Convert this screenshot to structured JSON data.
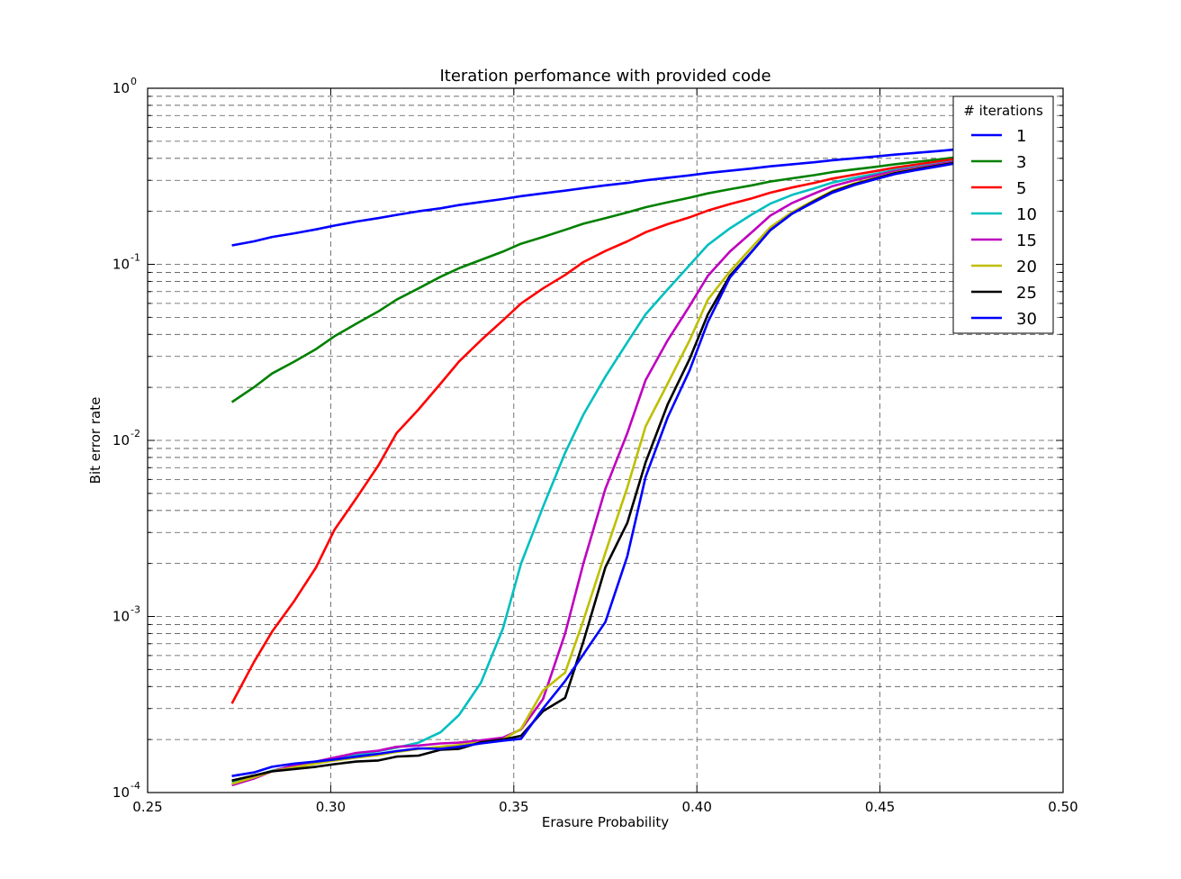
{
  "chart_data": {
    "type": "line",
    "title": "Iteration perfomance with provided code",
    "xlabel": "Erasure Probability",
    "ylabel": "Bit error rate",
    "xlim": [
      0.25,
      0.5
    ],
    "ylim": [
      0.0001,
      1
    ],
    "yscale": "log",
    "grid": true,
    "legend_position": "top-right",
    "legend_title": "# iterations",
    "x_ticks": [
      "0.25",
      "0.30",
      "0.35",
      "0.40",
      "0.45",
      "0.50"
    ],
    "y_ticks": [
      {
        "base": "10",
        "exp": "0"
      },
      {
        "base": "10",
        "exp": "-1"
      },
      {
        "base": "10",
        "exp": "-2"
      },
      {
        "base": "10",
        "exp": "-3"
      },
      {
        "base": "10",
        "exp": "-4"
      }
    ],
    "x": [
      0.273,
      0.279,
      0.284,
      0.29,
      0.296,
      0.301,
      0.307,
      0.313,
      0.318,
      0.324,
      0.33,
      0.335,
      0.341,
      0.347,
      0.352,
      0.358,
      0.364,
      0.369,
      0.375,
      0.381,
      0.386,
      0.392,
      0.398,
      0.403,
      0.409,
      0.415,
      0.42,
      0.426,
      0.432,
      0.437,
      0.443,
      0.449,
      0.454,
      0.46,
      0.466,
      0.471,
      0.477,
      0.483,
      0.488,
      0.494
    ],
    "series": [
      {
        "name": "1",
        "color": "#0000ff",
        "values": [
          0.128,
          0.135,
          0.143,
          0.15,
          0.158,
          0.166,
          0.175,
          0.183,
          0.191,
          0.2,
          0.208,
          0.217,
          0.226,
          0.235,
          0.244,
          0.253,
          0.262,
          0.271,
          0.281,
          0.29,
          0.3,
          0.31,
          0.32,
          0.33,
          0.34,
          0.35,
          0.36,
          0.37,
          0.38,
          0.39,
          0.4,
          0.41,
          0.42,
          0.43,
          0.44,
          0.45,
          0.46,
          0.47,
          0.48,
          0.49
        ]
      },
      {
        "name": "3",
        "color": "#008000",
        "values": [
          0.0165,
          0.02,
          0.024,
          0.028,
          0.033,
          0.039,
          0.046,
          0.054,
          0.063,
          0.073,
          0.085,
          0.095,
          0.106,
          0.118,
          0.131,
          0.143,
          0.157,
          0.17,
          0.183,
          0.197,
          0.211,
          0.225,
          0.239,
          0.253,
          0.267,
          0.281,
          0.295,
          0.308,
          0.321,
          0.334,
          0.346,
          0.358,
          0.37,
          0.382,
          0.394,
          0.406,
          0.418,
          0.43,
          0.442,
          0.454
        ]
      },
      {
        "name": "5",
        "color": "#ff0000",
        "values": [
          0.00032,
          0.00055,
          0.00082,
          0.00122,
          0.0019,
          0.0031,
          0.0047,
          0.0072,
          0.011,
          0.015,
          0.021,
          0.028,
          0.037,
          0.048,
          0.06,
          0.073,
          0.087,
          0.103,
          0.119,
          0.135,
          0.152,
          0.169,
          0.185,
          0.202,
          0.22,
          0.237,
          0.255,
          0.273,
          0.29,
          0.307,
          0.323,
          0.339,
          0.354,
          0.369,
          0.384,
          0.398,
          0.412,
          0.426,
          0.44,
          0.454
        ]
      },
      {
        "name": "10",
        "color": "#00bfbf",
        "values": [
          0.000115,
          0.000124,
          0.000133,
          0.000142,
          0.00015,
          0.000157,
          0.000164,
          0.000172,
          0.00018,
          0.000192,
          0.00022,
          0.000275,
          0.00042,
          0.00085,
          0.002,
          0.0042,
          0.0085,
          0.014,
          0.023,
          0.036,
          0.052,
          0.072,
          0.099,
          0.129,
          0.16,
          0.192,
          0.221,
          0.248,
          0.27,
          0.291,
          0.31,
          0.327,
          0.343,
          0.358,
          0.373,
          0.387,
          0.401,
          0.415,
          0.429,
          0.443
        ]
      },
      {
        "name": "15",
        "color": "#bf00bf",
        "values": [
          0.00011,
          0.00012,
          0.000132,
          0.000143,
          0.00015,
          0.000158,
          0.000168,
          0.000173,
          0.000182,
          0.000185,
          0.00019,
          0.000192,
          0.000198,
          0.000205,
          0.000228,
          0.00034,
          0.0008,
          0.002,
          0.0053,
          0.011,
          0.022,
          0.037,
          0.058,
          0.086,
          0.118,
          0.152,
          0.189,
          0.223,
          0.252,
          0.278,
          0.3,
          0.32,
          0.338,
          0.354,
          0.37,
          0.385,
          0.399,
          0.413,
          0.427,
          0.441
        ]
      },
      {
        "name": "20",
        "color": "#bfbf00",
        "values": [
          0.000112,
          0.000122,
          0.000132,
          0.000139,
          0.000146,
          0.000152,
          0.000158,
          0.000163,
          0.00017,
          0.000177,
          0.000182,
          0.000186,
          0.000193,
          0.0002,
          0.00023,
          0.00038,
          0.00048,
          0.00095,
          0.0023,
          0.0054,
          0.012,
          0.021,
          0.037,
          0.063,
          0.091,
          0.125,
          0.162,
          0.198,
          0.231,
          0.261,
          0.288,
          0.311,
          0.331,
          0.349,
          0.365,
          0.38,
          0.395,
          0.409,
          0.423,
          0.437
        ]
      },
      {
        "name": "25",
        "color": "#000000",
        "values": [
          0.000117,
          0.000125,
          0.000132,
          0.000136,
          0.00014,
          0.000145,
          0.00015,
          0.000152,
          0.00016,
          0.000162,
          0.000175,
          0.000177,
          0.000193,
          0.0002,
          0.00021,
          0.00029,
          0.000345,
          0.00072,
          0.0019,
          0.0034,
          0.0075,
          0.016,
          0.029,
          0.052,
          0.086,
          0.118,
          0.156,
          0.194,
          0.228,
          0.258,
          0.285,
          0.308,
          0.329,
          0.347,
          0.364,
          0.379,
          0.394,
          0.408,
          0.422,
          0.436
        ]
      },
      {
        "name": "30",
        "color": "#0000ff",
        "values": [
          0.000124,
          0.00013,
          0.00014,
          0.000146,
          0.00015,
          0.000154,
          0.00016,
          0.000166,
          0.000172,
          0.000178,
          0.000177,
          0.000182,
          0.00019,
          0.000197,
          0.000202,
          0.0003,
          0.00043,
          0.00061,
          0.00093,
          0.0022,
          0.0062,
          0.0135,
          0.025,
          0.047,
          0.084,
          0.118,
          0.156,
          0.194,
          0.226,
          0.255,
          0.282,
          0.305,
          0.325,
          0.343,
          0.36,
          0.376,
          0.391,
          0.406,
          0.42,
          0.434
        ]
      }
    ]
  }
}
